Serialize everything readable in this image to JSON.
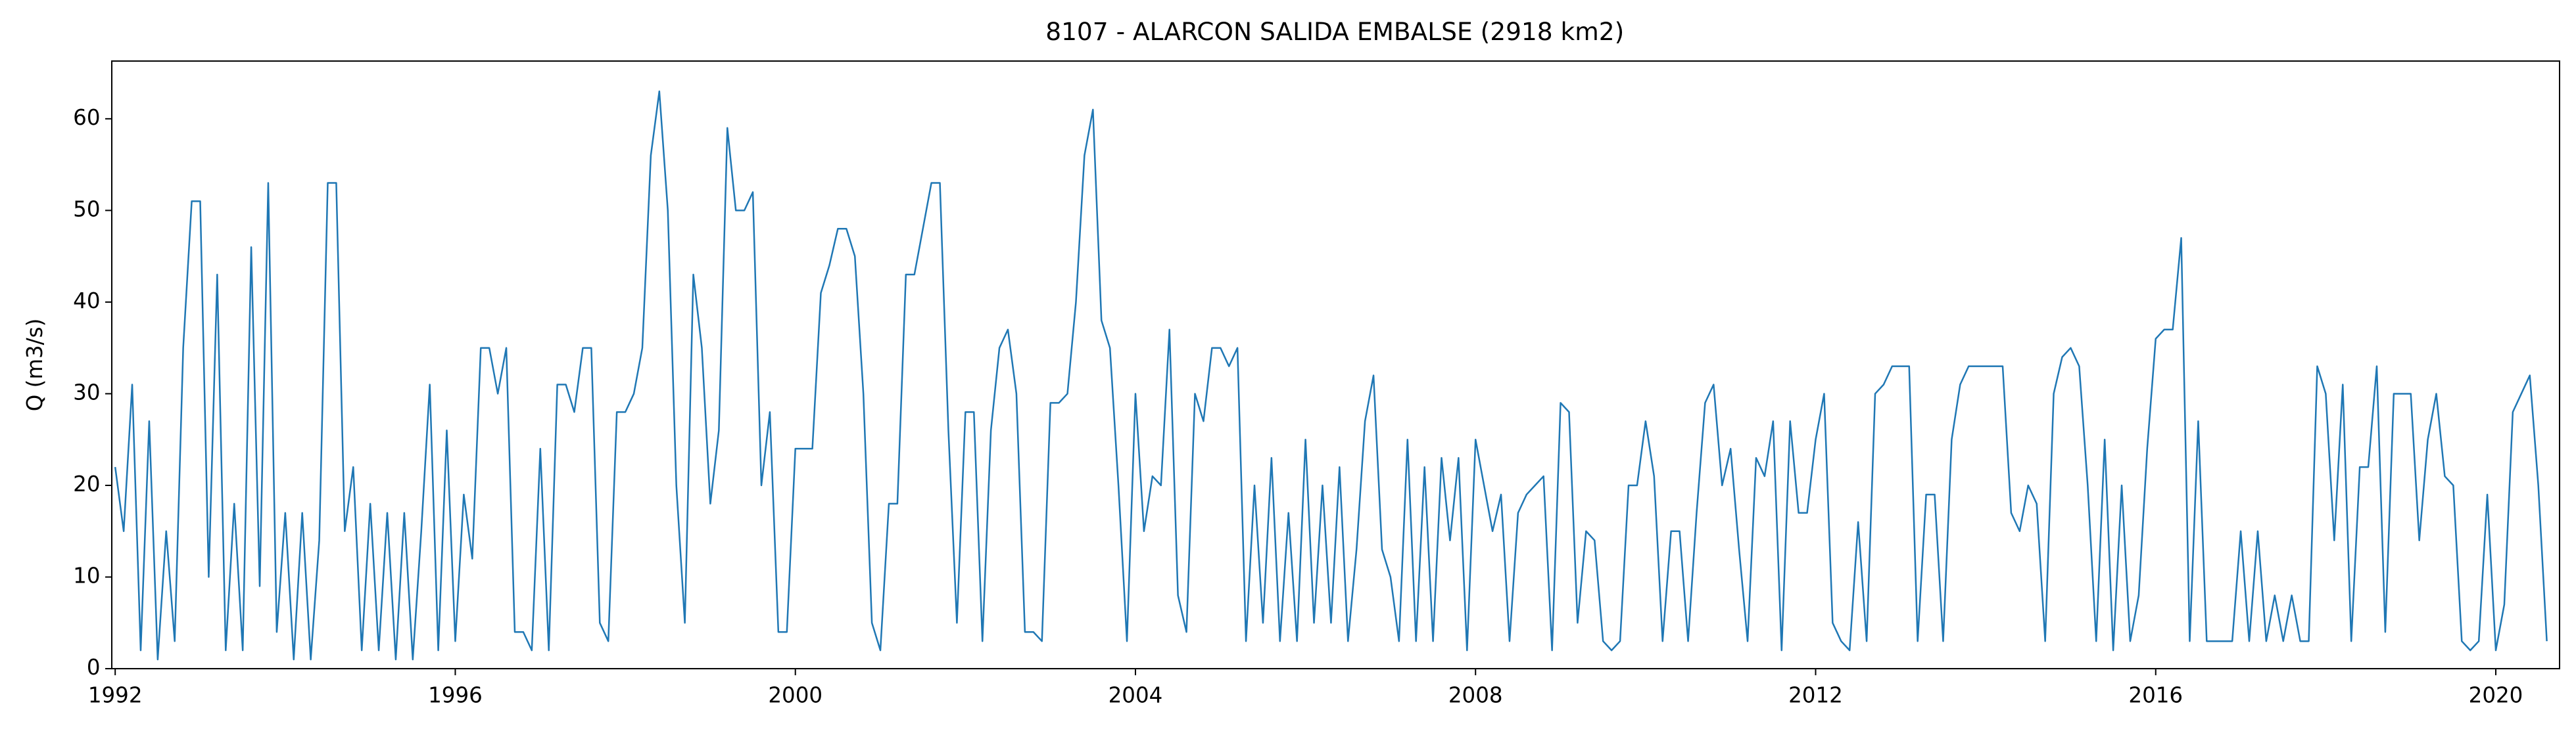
{
  "chart_data": {
    "type": "line",
    "title": "8107 - ALARCON SALIDA EMBALSE (2918 km2)",
    "ylabel": "Q (m3/s)",
    "color": "#1f77b4",
    "xlim": [
      1991.96,
      2020.75
    ],
    "xticks": [
      1992,
      1996,
      2000,
      2004,
      2008,
      2012,
      2016,
      2020
    ],
    "ylim": [
      0,
      66.3
    ],
    "yticks": [
      0,
      10,
      20,
      30,
      40,
      50,
      60
    ],
    "x": [
      1992.0,
      1992.1,
      1992.2,
      1992.3,
      1992.4,
      1992.5,
      1992.6,
      1992.7,
      1992.8,
      1992.9,
      1993.0,
      1993.1,
      1993.2,
      1993.3,
      1993.4,
      1993.5,
      1993.6,
      1993.7,
      1993.8,
      1993.9,
      1994.0,
      1994.1,
      1994.2,
      1994.3,
      1994.4,
      1994.5,
      1994.6,
      1994.7,
      1994.8,
      1994.9,
      1995.0,
      1995.1,
      1995.2,
      1995.3,
      1995.4,
      1995.5,
      1995.6,
      1995.7,
      1995.8,
      1995.9,
      1996.0,
      1996.1,
      1996.2,
      1996.3,
      1996.4,
      1996.5,
      1996.6,
      1996.7,
      1996.8,
      1996.9,
      1997.0,
      1997.1,
      1997.2,
      1997.3,
      1997.4,
      1997.5,
      1997.6,
      1997.7,
      1997.8,
      1997.9,
      1998.0,
      1998.1,
      1998.2,
      1998.3,
      1998.4,
      1998.5,
      1998.6,
      1998.7,
      1998.8,
      1998.9,
      1999.0,
      1999.1,
      1999.2,
      1999.3,
      1999.4,
      1999.5,
      1999.6,
      1999.7,
      1999.8,
      1999.9,
      2000.0,
      2000.1,
      2000.2,
      2000.3,
      2000.4,
      2000.5,
      2000.6,
      2000.7,
      2000.8,
      2000.9,
      2001.0,
      2001.1,
      2001.2,
      2001.3,
      2001.4,
      2001.5,
      2001.6,
      2001.7,
      2001.8,
      2001.9,
      2002.0,
      2002.1,
      2002.2,
      2002.3,
      2002.4,
      2002.5,
      2002.6,
      2002.7,
      2002.8,
      2002.9,
      2003.0,
      2003.1,
      2003.2,
      2003.3,
      2003.4,
      2003.5,
      2003.6,
      2003.7,
      2003.8,
      2003.9,
      2004.0,
      2004.1,
      2004.2,
      2004.3,
      2004.4,
      2004.5,
      2004.6,
      2004.7,
      2004.8,
      2004.9,
      2005.0,
      2005.1,
      2005.2,
      2005.3,
      2005.4,
      2005.5,
      2005.6,
      2005.7,
      2005.8,
      2005.9,
      2006.0,
      2006.1,
      2006.2,
      2006.3,
      2006.4,
      2006.5,
      2006.6,
      2006.7,
      2006.8,
      2006.9,
      2007.0,
      2007.1,
      2007.2,
      2007.3,
      2007.4,
      2007.5,
      2007.6,
      2007.7,
      2007.8,
      2007.9,
      2008.0,
      2008.1,
      2008.2,
      2008.3,
      2008.4,
      2008.5,
      2008.6,
      2008.7,
      2008.8,
      2008.9,
      2009.0,
      2009.1,
      2009.2,
      2009.3,
      2009.4,
      2009.5,
      2009.6,
      2009.7,
      2009.8,
      2009.9,
      2010.0,
      2010.1,
      2010.2,
      2010.3,
      2010.4,
      2010.5,
      2010.6,
      2010.7,
      2010.8,
      2010.9,
      2011.0,
      2011.1,
      2011.2,
      2011.3,
      2011.4,
      2011.5,
      2011.6,
      2011.7,
      2011.8,
      2011.9,
      2012.0,
      2012.1,
      2012.2,
      2012.3,
      2012.4,
      2012.5,
      2012.6,
      2012.7,
      2012.8,
      2012.9,
      2013.0,
      2013.1,
      2013.2,
      2013.3,
      2013.4,
      2013.5,
      2013.6,
      2013.7,
      2013.8,
      2013.9,
      2014.0,
      2014.1,
      2014.2,
      2014.3,
      2014.4,
      2014.5,
      2014.6,
      2014.7,
      2014.8,
      2014.9,
      2015.0,
      2015.1,
      2015.2,
      2015.3,
      2015.4,
      2015.5,
      2015.6,
      2015.7,
      2015.8,
      2015.9,
      2016.0,
      2016.1,
      2016.2,
      2016.3,
      2016.4,
      2016.5,
      2016.6,
      2016.7,
      2016.8,
      2016.9,
      2017.0,
      2017.1,
      2017.2,
      2017.3,
      2017.4,
      2017.5,
      2017.6,
      2017.7,
      2017.8,
      2017.9,
      2018.0,
      2018.1,
      2018.2,
      2018.3,
      2018.4,
      2018.5,
      2018.6,
      2018.7,
      2018.8,
      2018.9,
      2019.0,
      2019.1,
      2019.2,
      2019.3,
      2019.4,
      2019.5,
      2019.6,
      2019.7,
      2019.8,
      2019.9,
      2020.0,
      2020.1,
      2020.2,
      2020.3,
      2020.4,
      2020.5,
      2020.6
    ],
    "values": [
      22,
      15,
      31,
      2,
      27,
      1,
      15,
      3,
      35,
      51,
      51,
      10,
      43,
      2,
      18,
      2,
      46,
      9,
      53,
      4,
      17,
      1,
      17,
      1,
      14,
      53,
      53,
      15,
      22,
      2,
      18,
      2,
      17,
      1,
      17,
      1,
      15,
      31,
      2,
      26,
      3,
      19,
      12,
      35,
      35,
      30,
      35,
      4,
      4,
      2,
      24,
      2,
      31,
      31,
      28,
      35,
      35,
      5,
      3,
      28,
      28,
      30,
      35,
      56,
      63,
      50,
      20,
      5,
      43,
      35,
      18,
      26,
      59,
      50,
      50,
      52,
      20,
      28,
      4,
      4,
      24,
      24,
      24,
      41,
      44,
      48,
      48,
      45,
      30,
      5,
      2,
      18,
      18,
      43,
      43,
      48,
      53,
      53,
      26,
      5,
      28,
      28,
      3,
      26,
      35,
      37,
      30,
      4,
      4,
      3,
      29,
      29,
      30,
      40,
      56,
      61,
      38,
      35,
      20,
      3,
      30,
      15,
      21,
      20,
      37,
      8,
      4,
      30,
      27,
      35,
      35,
      33,
      35,
      3,
      20,
      5,
      23,
      3,
      17,
      3,
      25,
      5,
      20,
      5,
      22,
      3,
      13,
      27,
      32,
      13,
      10,
      3,
      25,
      3,
      22,
      3,
      23,
      14,
      23,
      2,
      25,
      20,
      15,
      19,
      3,
      17,
      19,
      20,
      21,
      2,
      29,
      28,
      5,
      15,
      14,
      3,
      2,
      3,
      20,
      20,
      27,
      21,
      3,
      15,
      15,
      3,
      17,
      29,
      31,
      20,
      24,
      13,
      3,
      23,
      21,
      27,
      2,
      27,
      17,
      17,
      25,
      30,
      5,
      3,
      2,
      16,
      3,
      30,
      31,
      33,
      33,
      33,
      3,
      19,
      19,
      3,
      25,
      31,
      33,
      33,
      33,
      33,
      33,
      17,
      15,
      20,
      18,
      3,
      30,
      34,
      35,
      33,
      20,
      3,
      25,
      2,
      20,
      3,
      8,
      24,
      36,
      37,
      37,
      47,
      3,
      27,
      3,
      3,
      3,
      3,
      15,
      3,
      15,
      3,
      8,
      3,
      8,
      3,
      3,
      33,
      30,
      14,
      31,
      3,
      22,
      22,
      33,
      4,
      30,
      30,
      30,
      14,
      25,
      30,
      21,
      20,
      3,
      2,
      3,
      19,
      2,
      7,
      28,
      30,
      32,
      20,
      3
    ]
  }
}
